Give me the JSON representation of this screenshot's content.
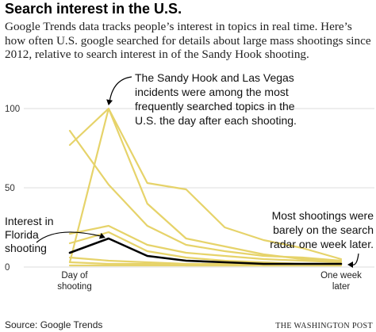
{
  "chart_data": {
    "type": "line",
    "title": "Search interest in the U.S.",
    "subtitle": "Google Trends data tracks people’s interest in topics in real time. Here’s how often U.S. google searched for details about large mass shootings since 2012, relative to search interest in of the Sandy Hook shooting.",
    "x": [
      0,
      1,
      2,
      3,
      4,
      5,
      6,
      7
    ],
    "x_tick_labels": [
      {
        "x": 0,
        "lines": [
          "Day of",
          "shooting"
        ]
      },
      {
        "x": 7,
        "lines": [
          "One week",
          "later"
        ]
      }
    ],
    "y_ticks": [
      0,
      50,
      100
    ],
    "ylim": [
      0,
      100
    ],
    "grid": "horizontal",
    "series": [
      {
        "highlight": true,
        "values": [
          9,
          18,
          7,
          4,
          3,
          2,
          2,
          2
        ]
      },
      {
        "values": [
          77,
          100,
          53,
          49,
          25,
          17,
          12,
          5
        ]
      },
      {
        "values": [
          3,
          100,
          40,
          18,
          13,
          8,
          5,
          3
        ]
      },
      {
        "values": [
          86,
          52,
          26,
          14,
          10,
          7,
          6,
          4
        ]
      },
      {
        "values": [
          21,
          26,
          14,
          9,
          7,
          5,
          4,
          3
        ]
      },
      {
        "values": [
          15,
          22,
          10,
          6,
          4,
          3,
          2,
          2
        ]
      },
      {
        "values": [
          6,
          4,
          3,
          2,
          2,
          1,
          1,
          1
        ]
      },
      {
        "values": [
          3,
          2,
          2,
          1,
          1,
          1,
          1,
          1
        ]
      },
      {
        "values": [
          1,
          1,
          1,
          1,
          1,
          1,
          1,
          1
        ]
      }
    ],
    "annotations": [
      {
        "lines": [
          "The Sandy Hook and Las Vegas",
          "incidents were among the most",
          "frequently searched topics in the",
          "U.S. the day after each shooting."
        ]
      },
      {
        "lines": [
          "Interest in",
          "Florida",
          "shooting"
        ]
      },
      {
        "lines": [
          "Most shootings were",
          "barely on the search",
          "radar one week later."
        ]
      }
    ],
    "colors": {
      "highlight": "#000000",
      "other": "#e6d36a",
      "grid": "#dcdcdc",
      "text": "#111111"
    }
  },
  "footer": {
    "source": "Source: Google Trends",
    "brand": "THE WASHINGTON POST"
  }
}
